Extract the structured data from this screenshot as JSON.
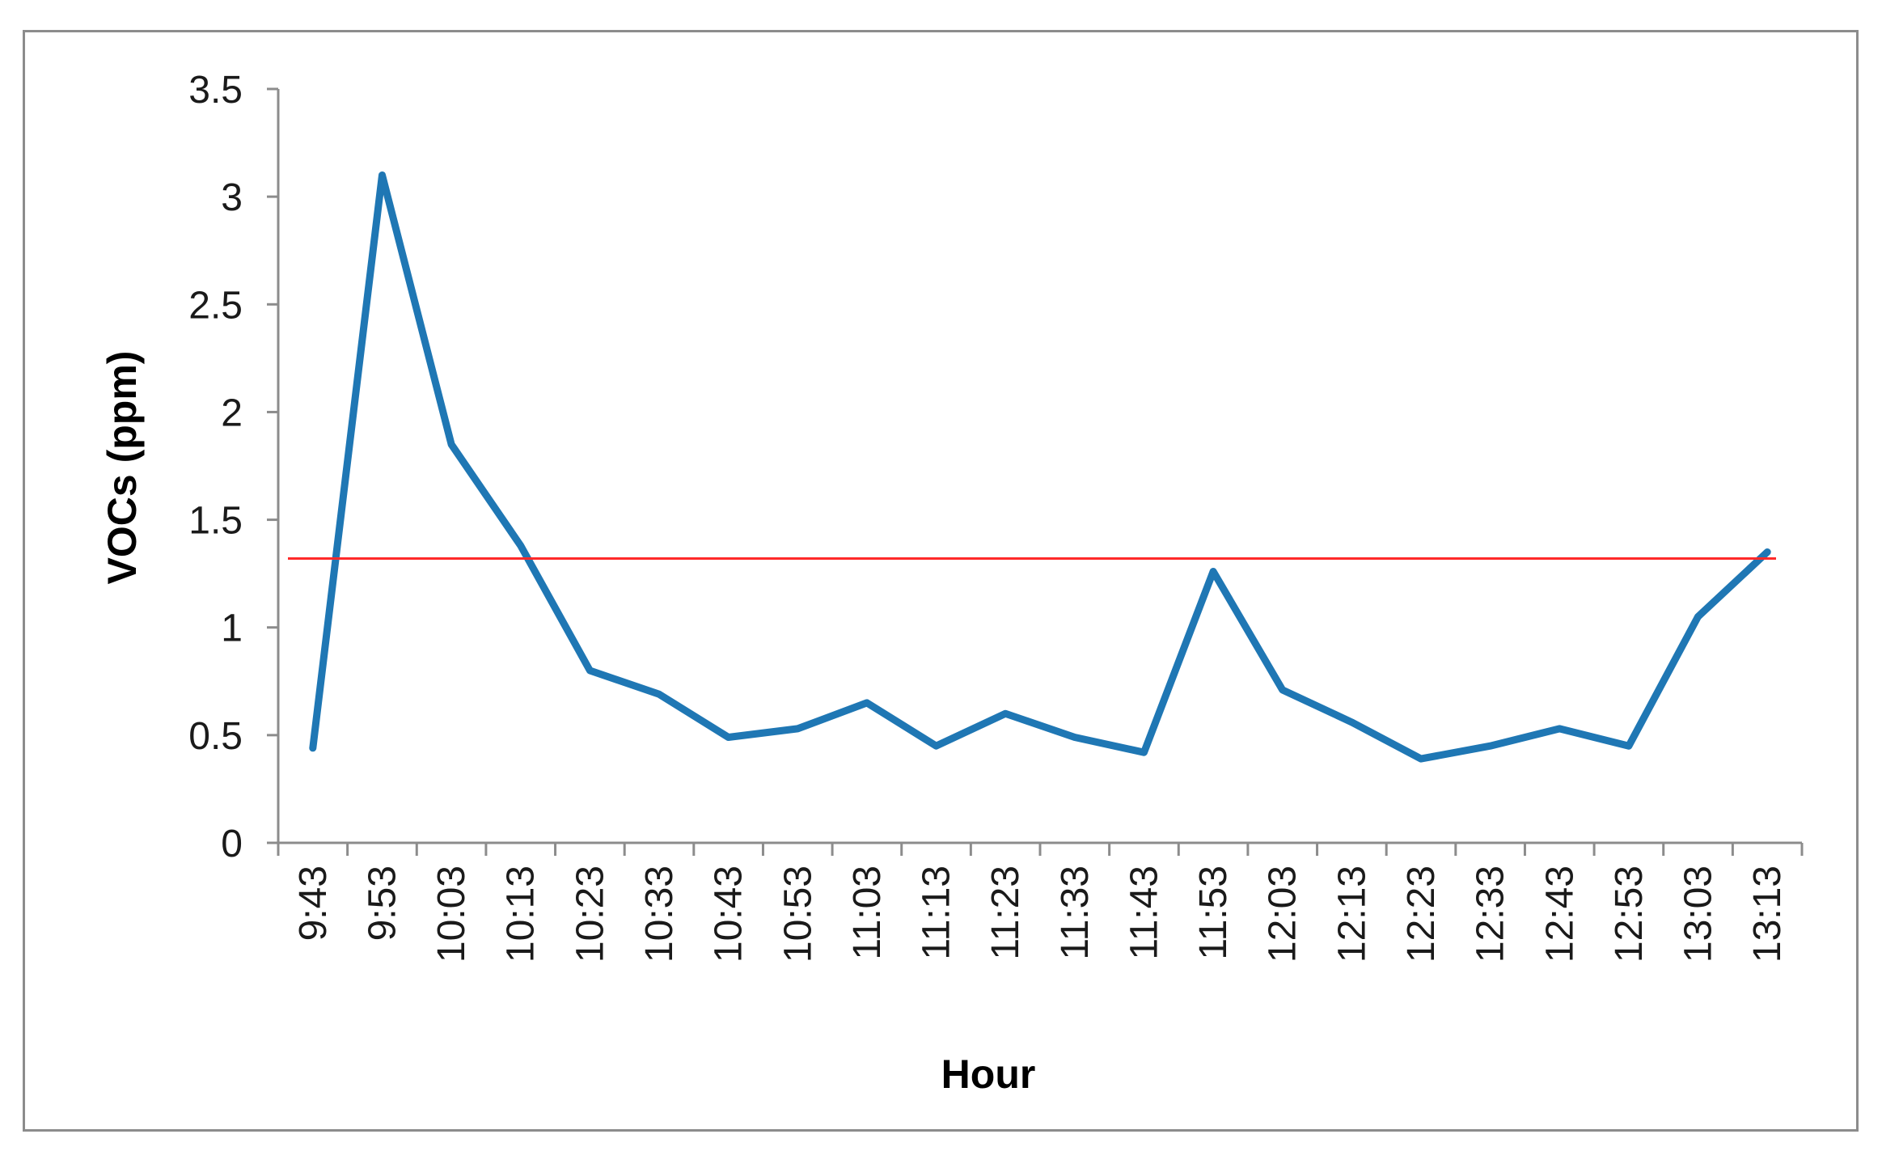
{
  "chart_data": {
    "type": "line",
    "xlabel": "Hour",
    "ylabel": "VOCs (ppm)",
    "ylim": [
      0,
      3.5
    ],
    "y_ticks": [
      "0",
      "0.5",
      "1",
      "1.5",
      "2",
      "2.5",
      "3",
      "3.5"
    ],
    "categories": [
      "9:43",
      "9:53",
      "10:03",
      "10:13",
      "10:23",
      "10:33",
      "10:43",
      "10:53",
      "11:03",
      "11:13",
      "11:23",
      "11:33",
      "11:43",
      "11:53",
      "12:03",
      "12:13",
      "12:23",
      "12:33",
      "12:43",
      "12:53",
      "13:03",
      "13:13"
    ],
    "series": [
      {
        "values": [
          0.44,
          3.1,
          1.85,
          1.38,
          0.8,
          0.69,
          0.49,
          0.53,
          0.65,
          0.45,
          0.6,
          0.49,
          0.42,
          1.26,
          0.71,
          0.56,
          0.39,
          0.45,
          0.53,
          0.45,
          1.05,
          1.35
        ],
        "color": "#1f77b4"
      }
    ],
    "reference_line": {
      "value": 1.32,
      "color": "#ff2a2a"
    },
    "grid": false,
    "legend": "none"
  }
}
